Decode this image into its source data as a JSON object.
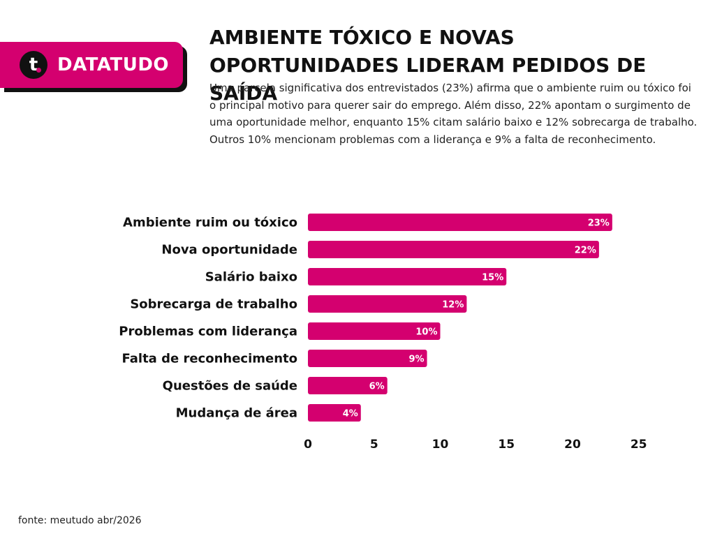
{
  "brand": {
    "logo_letter": "t",
    "name": "DATATUDO"
  },
  "header": {
    "title": "AMBIENTE TÓXICO E NOVAS OPORTUNIDADES LIDERAM PEDIDOS DE SAÍDA",
    "subtitle": "Uma parcela significativa dos entrevistados (23%) afirma que o ambiente ruim ou tóxico foi o principal motivo para querer sair do emprego. Além disso, 22% apontam o surgimento de uma oportunidade melhor, enquanto 15% citam salário baixo e 12% sobrecarga de trabalho. Outros 10% mencionam problemas com a liderança e 9% a falta de reconhecimento."
  },
  "chart_data": {
    "type": "bar",
    "orientation": "horizontal",
    "categories": [
      "Ambiente ruim ou tóxico",
      "Nova oportunidade",
      "Salário baixo",
      "Sobrecarga de trabalho",
      "Problemas com liderança",
      "Falta de reconhecimento",
      "Questões de saúde",
      "Mudança de área"
    ],
    "values": [
      23,
      22,
      15,
      12,
      10,
      9,
      6,
      4
    ],
    "value_labels": [
      "23%",
      "22%",
      "15%",
      "12%",
      "10%",
      "9%",
      "6%",
      "4%"
    ],
    "xlim": [
      0,
      25
    ],
    "xticks": [
      0,
      5,
      10,
      15,
      20,
      25
    ],
    "grid": false,
    "bar_color": "#d4006f"
  },
  "footer": {
    "source": "fonte: meutudo abr/2026"
  }
}
